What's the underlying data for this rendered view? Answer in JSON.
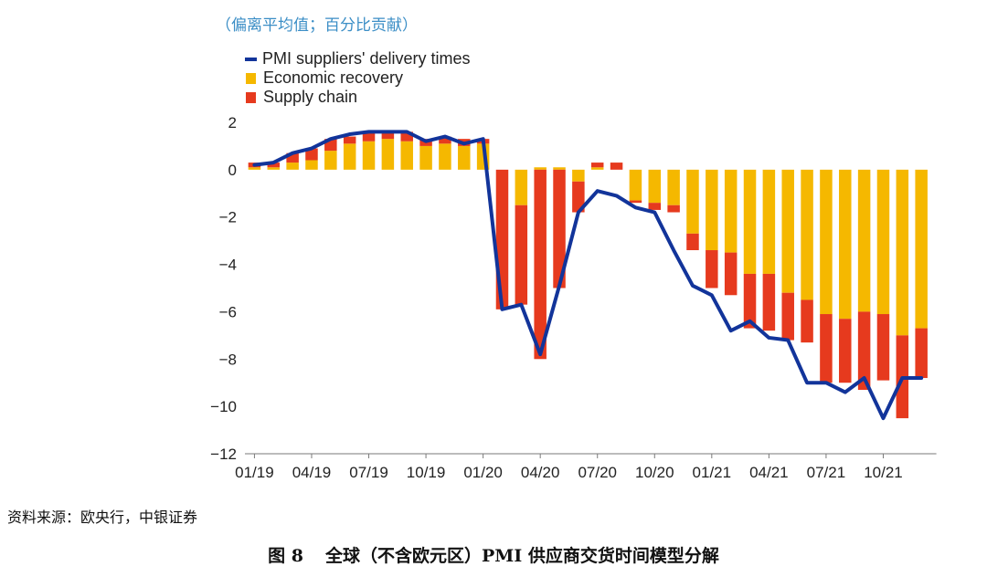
{
  "units_label": "（偏离平均值；百分比贡献）",
  "legend": [
    {
      "label": "PMI suppliers' delivery times",
      "color": "#12349a",
      "kind": "line"
    },
    {
      "label": "Economic recovery",
      "color": "#f5b800",
      "kind": "box"
    },
    {
      "label": "Supply chain",
      "color": "#e63a1e",
      "kind": "box"
    }
  ],
  "source": "资料来源：欧央行，中银证券",
  "figure_number": "图 8",
  "figure_title": "全球（不含欧元区）PMI 供应商交货时间模型分解",
  "chart_data": {
    "type": "bar",
    "stacked": true,
    "x": [
      "2019-01",
      "2019-02",
      "2019-03",
      "2019-04",
      "2019-05",
      "2019-06",
      "2019-07",
      "2019-08",
      "2019-09",
      "2019-10",
      "2019-11",
      "2019-12",
      "2020-01",
      "2020-02",
      "2020-03",
      "2020-04",
      "2020-05",
      "2020-06",
      "2020-07",
      "2020-08",
      "2020-09",
      "2020-10",
      "2020-11",
      "2020-12",
      "2021-01",
      "2021-02",
      "2021-03",
      "2021-04",
      "2021-05",
      "2021-06",
      "2021-07",
      "2021-08",
      "2021-09",
      "2021-10",
      "2021-11",
      "2021-12"
    ],
    "x_tick_labels": [
      "01/19",
      "04/19",
      "07/19",
      "10/19",
      "01/20",
      "04/20",
      "07/20",
      "10/20",
      "01/21",
      "04/21",
      "07/21",
      "10/21"
    ],
    "ylim": [
      -12,
      2
    ],
    "y_ticks": [
      2,
      0,
      -2,
      -4,
      -6,
      -8,
      -10,
      -12
    ],
    "y_tick_labels": [
      "2",
      "0",
      "−2",
      "−4",
      "−6",
      "−8",
      "−10",
      "−12"
    ],
    "grid": false,
    "legend_position": "top-left",
    "series": [
      {
        "name": "Economic recovery",
        "kind": "bar",
        "color": "#f5b800",
        "values": [
          0.1,
          0.1,
          0.3,
          0.4,
          0.8,
          1.1,
          1.2,
          1.3,
          1.2,
          1.0,
          1.1,
          1.0,
          1.1,
          0.0,
          -1.5,
          0.1,
          0.1,
          -0.5,
          0.1,
          0.0,
          -1.3,
          -1.4,
          -1.5,
          -2.7,
          -3.4,
          -3.5,
          -4.4,
          -4.4,
          -5.2,
          -5.5,
          -6.1,
          -6.3,
          -6.0,
          -6.1,
          -7.0,
          -6.7
        ]
      },
      {
        "name": "Supply chain",
        "kind": "bar",
        "color": "#e63a1e",
        "values": [
          0.2,
          0.2,
          0.4,
          0.5,
          0.5,
          0.3,
          0.4,
          0.3,
          0.4,
          0.3,
          0.3,
          0.3,
          0.2,
          -5.9,
          -4.2,
          -8.0,
          -5.0,
          -1.3,
          0.2,
          0.3,
          -0.1,
          -0.3,
          -0.3,
          -0.7,
          -1.6,
          -1.8,
          -2.3,
          -2.4,
          -2.0,
          -1.8,
          -2.9,
          -2.7,
          -3.3,
          -2.8,
          -3.5,
          -2.1
        ]
      },
      {
        "name": "PMI suppliers' delivery times",
        "kind": "line",
        "color": "#12349a",
        "values": [
          0.2,
          0.3,
          0.7,
          0.9,
          1.3,
          1.5,
          1.6,
          1.6,
          1.6,
          1.2,
          1.4,
          1.1,
          1.3,
          -5.9,
          -5.7,
          -7.8,
          -4.9,
          -1.8,
          -0.9,
          -1.1,
          -1.6,
          -1.8,
          -3.4,
          -4.9,
          -5.3,
          -6.8,
          -6.4,
          -7.1,
          -7.2,
          -9.0,
          -9.0,
          -9.4,
          -8.8,
          -10.5,
          -8.8,
          -8.8
        ]
      }
    ]
  }
}
